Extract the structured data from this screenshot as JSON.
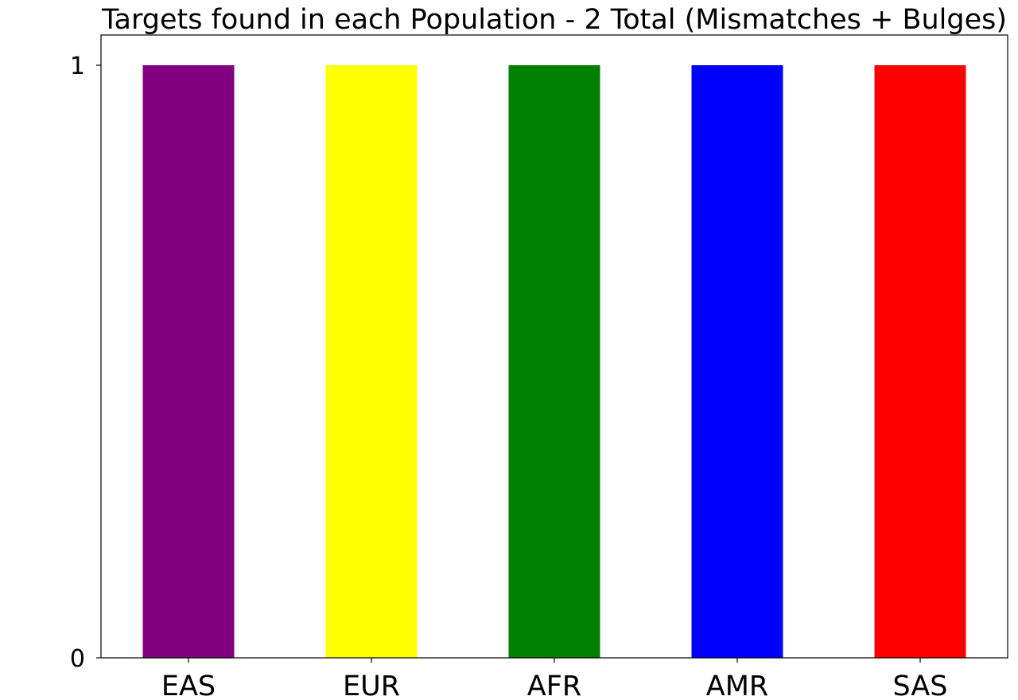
{
  "chart_data": {
    "type": "bar",
    "title": "Targets found in each Population - 2 Total (Mismatches + Bulges)",
    "xlabel": "",
    "ylabel": "",
    "categories": [
      "EAS",
      "EUR",
      "AFR",
      "AMR",
      "SAS"
    ],
    "values": [
      1,
      1,
      1,
      1,
      1
    ],
    "colors": [
      "#800080",
      "#ffff00",
      "#008000",
      "#0000ff",
      "#ff0000"
    ],
    "yticks": [
      0,
      1
    ],
    "ylim": [
      0,
      1
    ],
    "grid": false,
    "legend": "none"
  }
}
